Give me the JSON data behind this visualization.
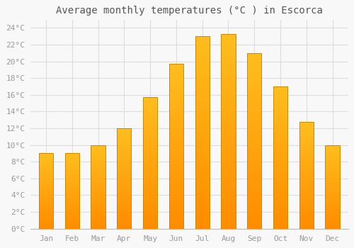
{
  "title": "Average monthly temperatures (°C ) in Escorca",
  "months": [
    "Jan",
    "Feb",
    "Mar",
    "Apr",
    "May",
    "Jun",
    "Jul",
    "Aug",
    "Sep",
    "Oct",
    "Nov",
    "Dec"
  ],
  "values": [
    9,
    9,
    10,
    12,
    15.7,
    19.7,
    23,
    23.3,
    21,
    17,
    12.8,
    10
  ],
  "bar_color_top": "#FFB300",
  "bar_color_bottom": "#FFA000",
  "bar_edge_color": "#CC8800",
  "background_color": "#F8F8F8",
  "grid_color": "#DDDDDD",
  "ylim": [
    0,
    25
  ],
  "yticks": [
    0,
    2,
    4,
    6,
    8,
    10,
    12,
    14,
    16,
    18,
    20,
    22,
    24
  ],
  "title_fontsize": 10,
  "tick_fontsize": 8,
  "tick_label_color": "#999999",
  "title_color": "#555555",
  "bar_width": 0.55
}
